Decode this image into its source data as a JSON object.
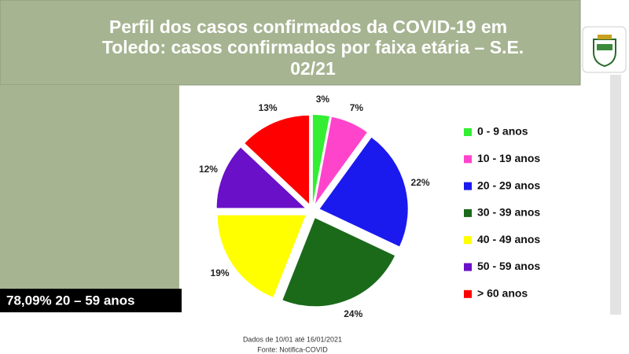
{
  "slide": {
    "title_lines": [
      "Perfil dos casos confirmados da COVID-19 em",
      "Toledo: casos confirmados por faixa etária – S.E.",
      "02/21"
    ],
    "highlight": "78,09% 20 – 59 anos",
    "footer": [
      "Dados de 10/01 até 16/01/2021",
      "Fonte: Notifica-COVID"
    ]
  },
  "chart_data": {
    "type": "pie",
    "categories": [
      "0 - 9 anos",
      "10 - 19 anos",
      "20 - 29 anos",
      "30 - 39 anos",
      "40 - 49 anos",
      "50 - 59 anos",
      "> 60 anos"
    ],
    "values": [
      3,
      7,
      22,
      24,
      19,
      12,
      13
    ],
    "value_labels": [
      "3%",
      "7%",
      "22%",
      "24%",
      "19%",
      "12%",
      "13%"
    ],
    "colors": [
      "#33ee33",
      "#ff44cc",
      "#1a1aee",
      "#1a6a1a",
      "#ffff00",
      "#6a10c8",
      "#ff0000"
    ],
    "legend": "right"
  }
}
